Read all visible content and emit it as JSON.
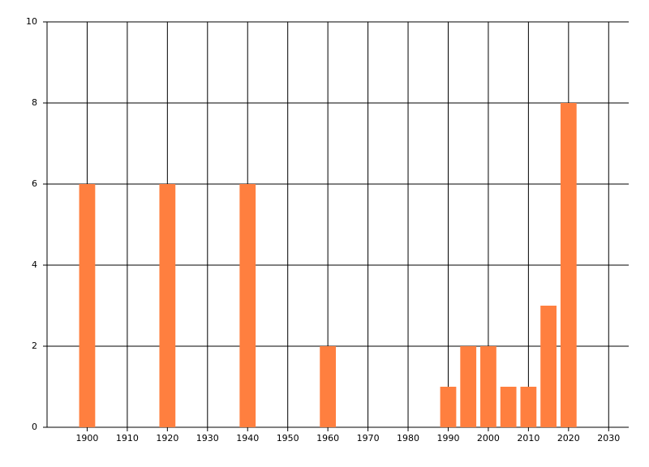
{
  "chart_data": {
    "type": "bar",
    "x": [
      1900,
      1920,
      1940,
      1960,
      1990,
      1995,
      2000,
      2005,
      2010,
      2015,
      2020
    ],
    "values": [
      6,
      6,
      6,
      2,
      1,
      2,
      2,
      1,
      1,
      3,
      8
    ],
    "color": "#ff7f3f",
    "bar_width": 4,
    "xlim": [
      1890,
      2035
    ],
    "xticks": [
      1900,
      1910,
      1920,
      1930,
      1940,
      1950,
      1960,
      1970,
      1980,
      1990,
      2000,
      2010,
      2020,
      2030
    ],
    "ylim": [
      0,
      10
    ],
    "yticks": [
      0,
      2,
      4,
      6,
      8,
      10
    ],
    "grid": true
  }
}
